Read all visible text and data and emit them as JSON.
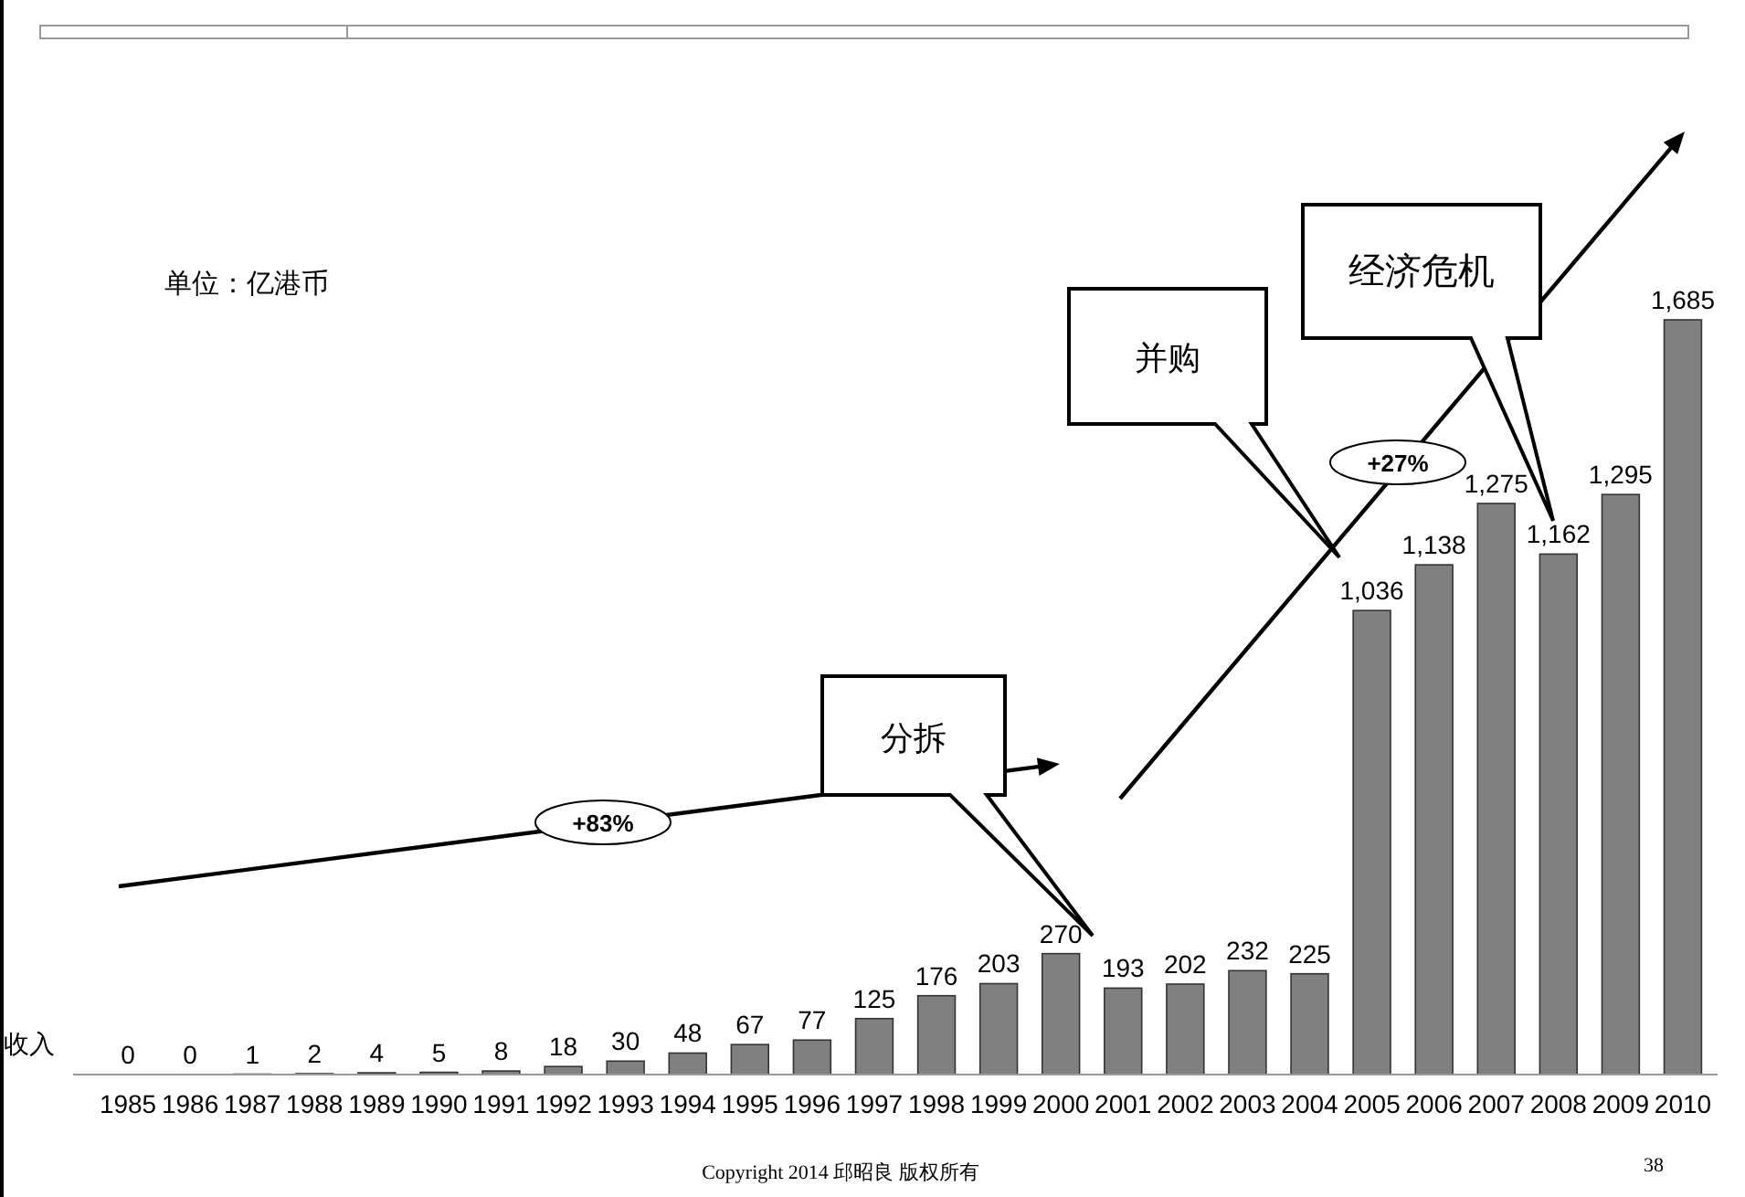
{
  "chart_data": {
    "type": "bar",
    "ylabel": "收入",
    "categories": [
      "1985",
      "1986",
      "1987",
      "1988",
      "1989",
      "1990",
      "1991",
      "1992",
      "1993",
      "1994",
      "1995",
      "1996",
      "1997",
      "1998",
      "1999",
      "2000",
      "2001",
      "2002",
      "2003",
      "2004",
      "2005",
      "2006",
      "2007",
      "2008",
      "2009",
      "2010"
    ],
    "values": [
      0,
      0,
      1,
      2,
      4,
      5,
      8,
      18,
      30,
      48,
      67,
      77,
      125,
      176,
      203,
      270,
      193,
      202,
      232,
      225,
      1036,
      1138,
      1275,
      1162,
      1295,
      1685
    ],
    "value_labels": [
      "0",
      "0",
      "1",
      "2",
      "4",
      "5",
      "8",
      "18",
      "30",
      "48",
      "67",
      "77",
      "125",
      "176",
      "203",
      "270",
      "193",
      "202",
      "232",
      "225",
      "1,036",
      "1,138",
      "1,275",
      "1,162",
      "1,295",
      "1,685"
    ],
    "color": "#808080",
    "annotations": [
      "单位：亿港币",
      "分拆",
      "并购",
      "经济危机",
      "+83%",
      "+27%",
      "Copyright 2014 邱昭良 版权所有",
      "38"
    ]
  }
}
